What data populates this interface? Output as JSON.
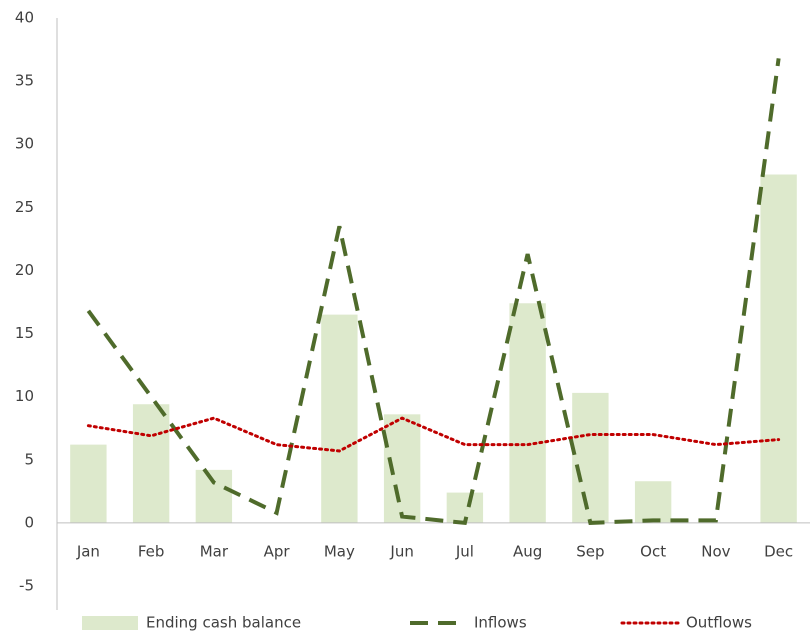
{
  "chart_data": {
    "type": "bar-line",
    "categories": [
      "Jan",
      "Feb",
      "Mar",
      "Apr",
      "May",
      "Jun",
      "Jul",
      "Aug",
      "Sep",
      "Oct",
      "Nov",
      "Dec"
    ],
    "series": [
      {
        "name": "Ending cash balance",
        "type": "bar",
        "color": "#dde9cc",
        "values": [
          6.2,
          9.4,
          4.2,
          0,
          16.5,
          8.6,
          2.4,
          17.4,
          10.3,
          3.3,
          0,
          27.6
        ]
      },
      {
        "name": "Inflows",
        "type": "line",
        "dash": "dashed",
        "color": "#4f6b2b",
        "values": [
          16.8,
          10,
          3.2,
          0.8,
          23.5,
          0.5,
          0,
          21.3,
          0,
          0.2,
          0.2,
          36.8
        ]
      },
      {
        "name": "Outflows",
        "type": "line",
        "dash": "dotted",
        "color": "#c00000",
        "values": [
          7.7,
          6.9,
          8.3,
          6.2,
          5.7,
          8.3,
          6.2,
          6.2,
          7.0,
          7.0,
          6.2,
          6.6
        ]
      }
    ],
    "ylim": [
      -5,
      40
    ],
    "yticks": [
      -5,
      0,
      5,
      10,
      15,
      20,
      25,
      30,
      35,
      40
    ],
    "legend": "bottom"
  }
}
